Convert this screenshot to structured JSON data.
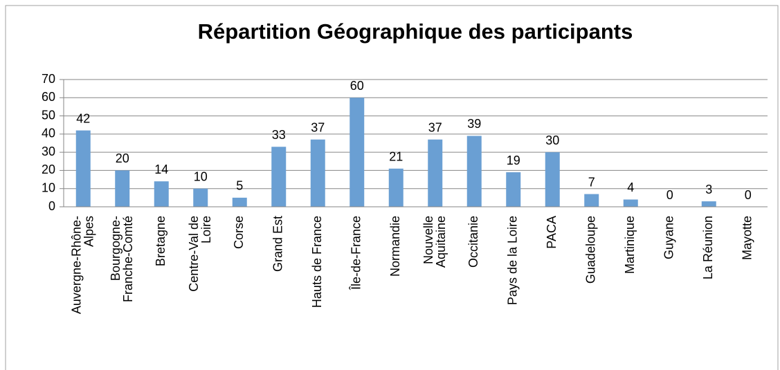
{
  "chart_data": {
    "type": "bar",
    "title": "Répartition Géographique des participants",
    "categories": [
      "Auvergne-Rhône-Alpes",
      "Bourgogne-Franche-Comté",
      "Bretagne",
      "Centre-Val de Loire",
      "Corse",
      "Grand Est",
      "Hauts de France",
      "Île-de-France",
      "Normandie",
      "Nouvelle Aquitaine",
      "Occitanie",
      "Pays de la Loire",
      "PACA",
      "Guadeloupe",
      "Martinique",
      "Guyane",
      "La Réunion",
      "Mayotte"
    ],
    "values": [
      42,
      20,
      14,
      10,
      5,
      33,
      37,
      60,
      21,
      37,
      39,
      19,
      30,
      7,
      4,
      0,
      3,
      0
    ],
    "color": "#6a9fd3",
    "ylim": [
      0,
      70
    ],
    "yticks": [
      0,
      10,
      20,
      30,
      40,
      50,
      60,
      70
    ],
    "grid": true
  }
}
